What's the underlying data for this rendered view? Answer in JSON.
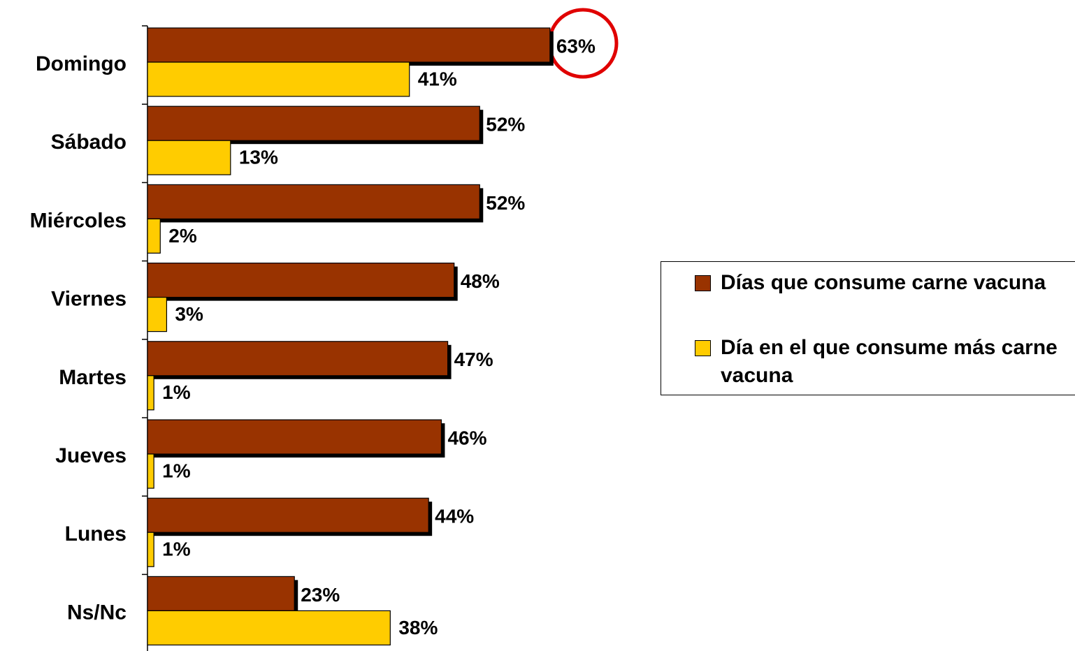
{
  "chart_data": {
    "type": "bar",
    "orientation": "horizontal",
    "categories": [
      "Domingo",
      "Sábado",
      "Miércoles",
      "Viernes",
      "Martes",
      "Jueves",
      "Lunes",
      "Ns/Nc"
    ],
    "series": [
      {
        "name": "Días que consume carne vacuna",
        "color": "#993300",
        "values": [
          63,
          52,
          52,
          48,
          47,
          46,
          44,
          23
        ],
        "value_labels": [
          "63%",
          "52%",
          "52%",
          "48%",
          "47%",
          "46%",
          "44%",
          "23%"
        ]
      },
      {
        "name": "Día en el que consume más carne vacuna",
        "color": "#FFCC00",
        "values": [
          41,
          13,
          2,
          3,
          1,
          1,
          1,
          38
        ],
        "value_labels": [
          "41%",
          "13%",
          "2%",
          "3%",
          "1%",
          "1%",
          "1%",
          "38%"
        ]
      }
    ]
  }
}
